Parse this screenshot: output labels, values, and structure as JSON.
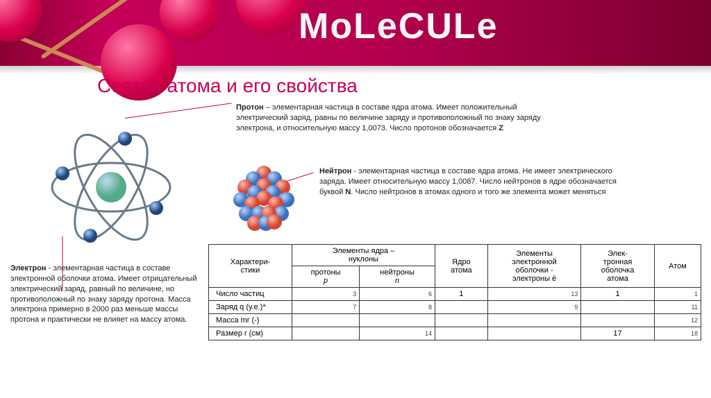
{
  "header": {
    "brand": "MoLeCULe"
  },
  "title": "Состав атома и его свойства",
  "defs": {
    "proton": {
      "term": "Протон",
      "text": " – элементарная частица в составе ядра атома. Имеет положительный электрический заряд, равны по величине заряду и противоположный по знаку заряду электрона, и относительную массу 1,0073. Число протонов обозначается ",
      "symbol": "Z"
    },
    "neutron": {
      "term": "Нейтрон",
      "text": " - элементарная частица в составе ядра атома. Не имеет электрического заряда. Имеет относительную массу 1,0087. Число нейтронов в ядре обозначается буквой ",
      "symbol": "N",
      "text2": ". Число нейтронов в атомах одного и того же элемента может меняться"
    },
    "electron": {
      "term": "Электрон",
      "text": " - элементарная частица в составе электронной оболочки атома. Имеет отрицательный электрический заряд, равный по величине, но противоположный по знаку заряду протона. Масса электрона примерно в 2000 раз меньше массы протона и практически не влияет на массу атома."
    }
  },
  "table": {
    "head": {
      "char": "Характери-\nстики",
      "nucleons": "Элементы ядра –\nнуклоны",
      "protons": "протоны",
      "protons_sym": "p",
      "neutrons": "нейтроны",
      "neutrons_sym": "n",
      "nucleus": "Ядро\nатома",
      "shell": "Элементы\nэлектронной\nоболочки -\nэлектроны ē",
      "eshell": "Элек-\nтронная\nоболочка\nатома",
      "atom": "Атом"
    },
    "rows": [
      {
        "label": "Число частиц",
        "p": "3",
        "n": "6",
        "nucleus": "1",
        "e": "13",
        "shell": "1",
        "atom": "1"
      },
      {
        "label": "Заряд q (у.е.)*",
        "p": "7",
        "n": "8",
        "nucleus": "",
        "e": "9",
        "shell": "",
        "atom": "11"
      },
      {
        "label": "Масса mr (-)",
        "p": "",
        "n": "",
        "nucleus": "",
        "e": "",
        "shell": "",
        "atom": "12"
      },
      {
        "label": "Размер r (см)",
        "p": "",
        "n": "14",
        "nucleus": "",
        "e": "",
        "shell": "17",
        "atom": "18"
      }
    ]
  },
  "colors": {
    "accent": "#c6005a",
    "sphere_light": "#ff7aa9",
    "sphere_dark": "#8f0033",
    "nucleus_red": "#e85a4f",
    "nucleus_blue": "#5b8fd6"
  }
}
